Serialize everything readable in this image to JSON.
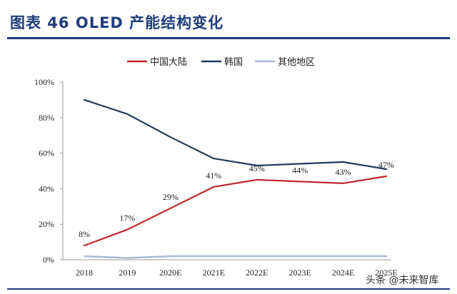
{
  "header": {
    "title": "图表 46 OLED 产能结构变化"
  },
  "watermark": "头条 @未来智库",
  "chart_data": {
    "type": "line",
    "title": "图表 46 OLED 产能结构变化",
    "categories": [
      "2018",
      "2019",
      "2020E",
      "2021E",
      "2022E",
      "2023E",
      "2024E",
      "2025E"
    ],
    "ylim": [
      0,
      100
    ],
    "yticks": [
      "0%",
      "20%",
      "40%",
      "60%",
      "80%",
      "100%"
    ],
    "grid": false,
    "legend_position": "top",
    "series": [
      {
        "name": "中国大陆",
        "color": "#c0262b",
        "values": [
          8,
          17,
          29,
          41,
          45,
          44,
          43,
          47
        ],
        "labels": [
          "8%",
          "17%",
          "29%",
          "41%",
          "45%",
          "44%",
          "43%",
          "47%"
        ]
      },
      {
        "name": "韩国",
        "color": "#243a5e",
        "values": [
          90,
          82,
          69,
          57,
          53,
          54,
          55,
          51
        ]
      },
      {
        "name": "其他地区",
        "color": "#a9bcd6",
        "values": [
          2,
          1,
          2,
          2,
          2,
          2,
          2,
          2
        ]
      }
    ]
  }
}
